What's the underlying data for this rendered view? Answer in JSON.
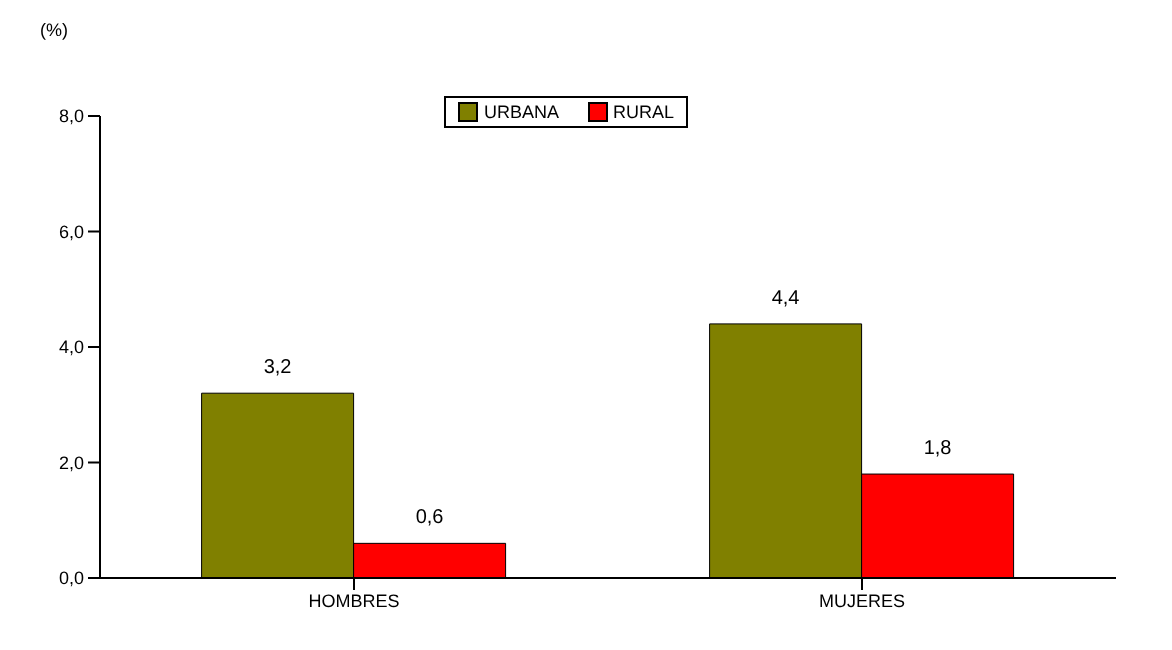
{
  "chart_data": {
    "type": "bar",
    "ylabel": "(%)",
    "categories": [
      "HOMBRES",
      "MUJERES"
    ],
    "series": [
      {
        "name": "URBANA",
        "color": "#808000",
        "values": [
          3.2,
          4.4
        ],
        "value_labels": [
          "3,2",
          "4,4"
        ]
      },
      {
        "name": "RURAL",
        "color": "#ff0000",
        "values": [
          0.6,
          1.8
        ],
        "value_labels": [
          "0,6",
          "1,8"
        ]
      }
    ],
    "ylim": [
      0,
      8
    ],
    "yticks": [
      {
        "value": 0,
        "label": "0,0"
      },
      {
        "value": 2,
        "label": "2,0"
      },
      {
        "value": 4,
        "label": "4,0"
      },
      {
        "value": 6,
        "label": "6,0"
      },
      {
        "value": 8,
        "label": "8,0"
      }
    ],
    "grid": false,
    "legend": "top"
  }
}
